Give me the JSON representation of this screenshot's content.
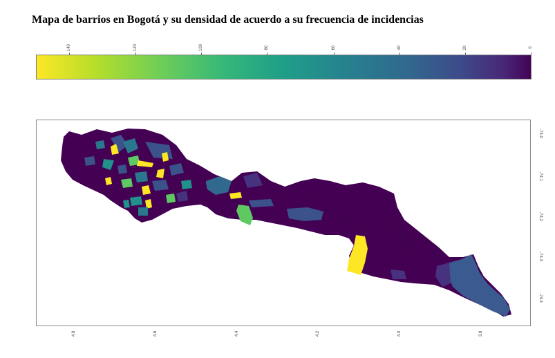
{
  "title": "Mapa de barrios en Bogotá y su densidad de acuerdo a su frecuencia de incidencias",
  "colorbar": {
    "ticks": [
      "140",
      "120",
      "100",
      "80",
      "60",
      "40",
      "20",
      "0"
    ],
    "min": 0,
    "max": 150,
    "colormap": "viridis",
    "colors": [
      "#fde725",
      "#5ec962",
      "#21918c",
      "#3b528b",
      "#440154"
    ]
  },
  "map": {
    "lat_ticks": [
      "-74.0",
      "-74.1",
      "-74.2",
      "-74.3",
      "-74.4"
    ],
    "lon_ticks": [
      "4.8",
      "4.6",
      "4.4",
      "4.2",
      "4.0",
      "3.8"
    ],
    "base_color": "#440154",
    "colors": {
      "purple_dark": "#440154",
      "purple": "#46277a",
      "blue": "#3b5a8f",
      "teal": "#2a788e",
      "green": "#5ec962",
      "yellow": "#fde725"
    }
  }
}
